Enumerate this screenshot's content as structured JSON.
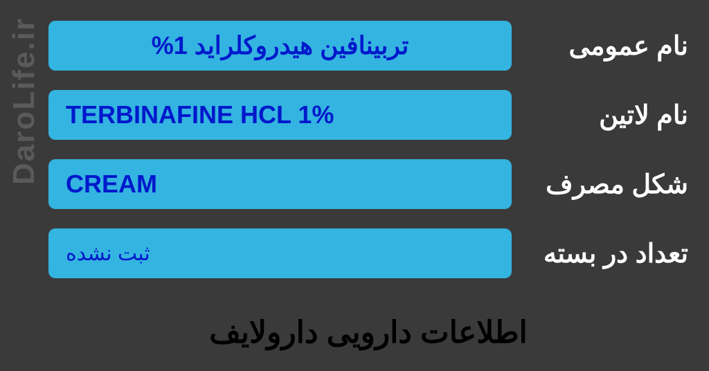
{
  "watermark": "DaroLife.ir",
  "footer": "اطلاعات دارویی دارولایف",
  "rows": [
    {
      "label": "نام عمومی",
      "value": "تربینافین هیدروکلراید 1%",
      "align": "center",
      "dir": "rtl",
      "style": "bold"
    },
    {
      "label": "نام لاتین",
      "value": "TERBINAFINE HCL 1%",
      "align": "left",
      "dir": "ltr",
      "style": "bold"
    },
    {
      "label": "شکل مصرف",
      "value": "CREAM",
      "align": "left",
      "dir": "ltr",
      "style": "bold"
    },
    {
      "label": "تعداد در بسته",
      "value": "ثبت نشده",
      "align": "left",
      "dir": "rtl",
      "style": "small"
    }
  ],
  "colors": {
    "background": "#3a3a3a",
    "box_bg": "#34b4e0",
    "value_text": "#0019cc",
    "label_text": "#ffffff",
    "footer_text": "#000000",
    "watermark": "#5a5a5a"
  }
}
